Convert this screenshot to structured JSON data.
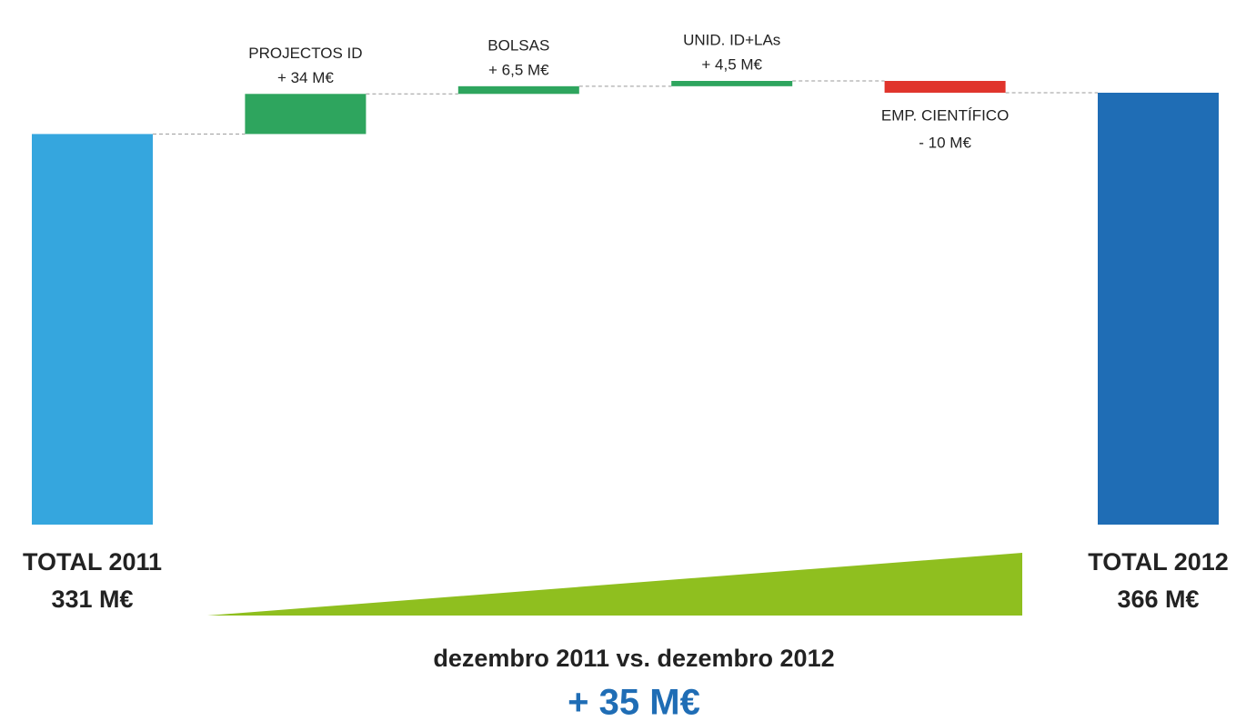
{
  "chart_data": {
    "type": "waterfall",
    "subtitle": "dezembro 2011 vs. dezembro 2012",
    "annotation": "+ 35 M€",
    "categories": [
      "TOTAL 2011",
      "PROJECTOS ID",
      "BOLSAS",
      "UNID. ID+LAs",
      "EMP. CIENTÍFICO",
      "TOTAL 2012"
    ],
    "values": [
      331,
      34,
      6.5,
      4.5,
      -10,
      366
    ],
    "value_labels": [
      "331 M€",
      "+ 34 M€",
      "+ 6,5 M€",
      "+ 4,5 M€",
      "- 10 M€",
      "366 M€"
    ],
    "totals": [
      true,
      false,
      false,
      false,
      false,
      true
    ],
    "colors": [
      "#35a6de",
      "#2ea55e",
      "#2ea55e",
      "#2ea55e",
      "#e0342c",
      "#1f6db5"
    ]
  }
}
